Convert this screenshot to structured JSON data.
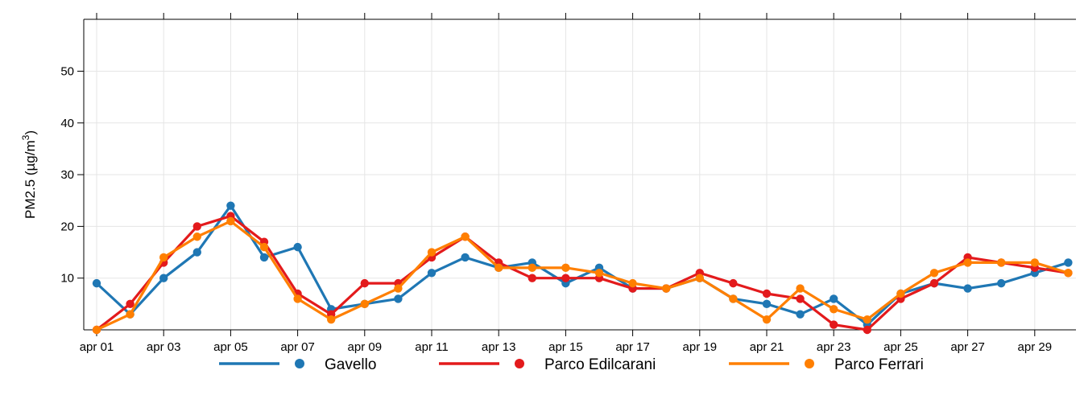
{
  "chart_data": {
    "type": "line",
    "ylabel": {
      "base": "PM2.5 (µg/m",
      "sup": "3",
      "end": ")"
    },
    "xlim": [
      1,
      30
    ],
    "ylim": [
      0,
      60
    ],
    "yticks": [
      10,
      20,
      30,
      40,
      50
    ],
    "xtick_positions": [
      1,
      3,
      5,
      7,
      9,
      11,
      13,
      15,
      17,
      19,
      21,
      23,
      25,
      27,
      29
    ],
    "xtick_labels": [
      "apr 01",
      "apr 03",
      "apr 05",
      "apr 07",
      "apr 09",
      "apr 11",
      "apr 13",
      "apr 15",
      "apr 17",
      "apr 19",
      "apr 21",
      "apr 23",
      "apr 25",
      "apr 27",
      "apr 29"
    ],
    "x": [
      1,
      2,
      3,
      4,
      5,
      6,
      7,
      8,
      9,
      10,
      11,
      12,
      13,
      14,
      15,
      16,
      17,
      18,
      19,
      20,
      21,
      22,
      23,
      24,
      25,
      26,
      27,
      28,
      29,
      30
    ],
    "grid": true,
    "legend_position": "bottom",
    "series": [
      {
        "name": "Gavello",
        "color": "#1f77b4",
        "values": [
          9,
          3,
          10,
          15,
          24,
          14,
          16,
          4,
          5,
          6,
          11,
          14,
          12,
          13,
          9,
          12,
          8,
          8,
          10,
          6,
          5,
          3,
          6,
          1,
          7,
          9,
          8,
          9,
          11,
          13
        ]
      },
      {
        "name": "Parco Edilcarani",
        "color": "#e31a1c",
        "values": [
          0,
          5,
          13,
          20,
          22,
          17,
          7,
          3,
          9,
          9,
          14,
          18,
          13,
          10,
          10,
          10,
          8,
          8,
          11,
          9,
          7,
          6,
          1,
          0,
          6,
          9,
          14,
          13,
          12,
          11
        ]
      },
      {
        "name": "Parco Ferrari",
        "color": "#ff7f00",
        "values": [
          0,
          3,
          14,
          18,
          21,
          16,
          6,
          2,
          5,
          8,
          15,
          18,
          12,
          12,
          12,
          11,
          9,
          8,
          10,
          6,
          2,
          8,
          4,
          2,
          7,
          11,
          13,
          13,
          13,
          11
        ]
      }
    ]
  }
}
